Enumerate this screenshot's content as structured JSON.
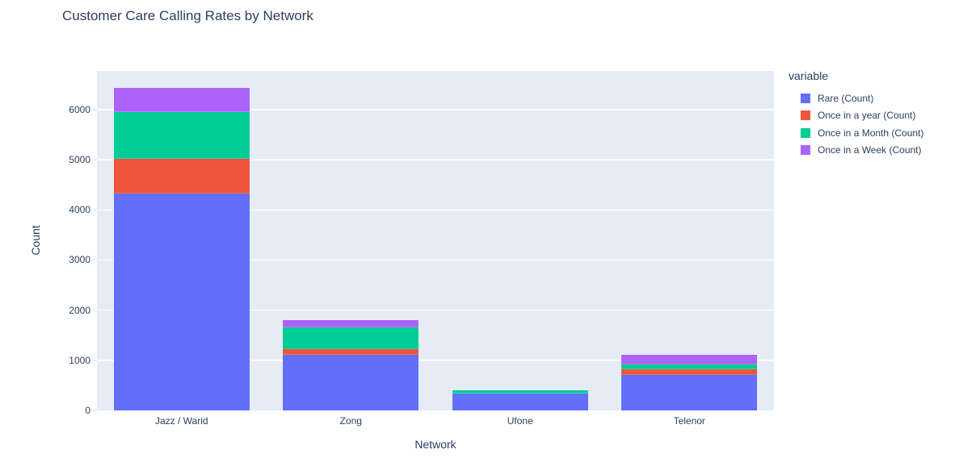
{
  "title": "Customer Care Calling Rates by Network",
  "colors": {
    "plot_background": "#e5ecf6",
    "gridline": "#ffffff",
    "text": "#2a3f5f",
    "page_background": "#ffffff"
  },
  "legend": {
    "title": "variable",
    "items": [
      {
        "label": "Rare (Count)",
        "color": "#636efa"
      },
      {
        "label": "Once in a year (Count)",
        "color": "#ef553b"
      },
      {
        "label": "Once in a Month (Count)",
        "color": "#00cc96"
      },
      {
        "label": "Once in a Week (Count)",
        "color": "#ab63fa"
      }
    ]
  },
  "chart_data": {
    "type": "bar",
    "stacked": true,
    "title": "Customer Care Calling Rates by Network",
    "xlabel": "Network",
    "ylabel": "Count",
    "categories": [
      "Jazz / Warid",
      "Zong",
      "Ufone",
      "Telenor"
    ],
    "series": [
      {
        "name": "Rare (Count)",
        "color": "#636efa",
        "values": [
          4325,
          1110,
          330,
          705
        ]
      },
      {
        "name": "Once in a year (Count)",
        "color": "#ef553b",
        "values": [
          700,
          110,
          10,
          115
        ]
      },
      {
        "name": "Once in a Month (Count)",
        "color": "#00cc96",
        "values": [
          925,
          440,
          60,
          105
        ]
      },
      {
        "name": "Once in a Week (Count)",
        "color": "#ab63fa",
        "values": [
          485,
          140,
          5,
          185
        ]
      }
    ],
    "totals": [
      6435,
      1800,
      405,
      1110
    ],
    "ylim": [
      0,
      6770
    ],
    "yticks": [
      0,
      1000,
      2000,
      3000,
      4000,
      5000,
      6000
    ],
    "grid": true,
    "legend_title": "variable",
    "legend_position": "right",
    "bar_width_fraction": 0.8
  }
}
